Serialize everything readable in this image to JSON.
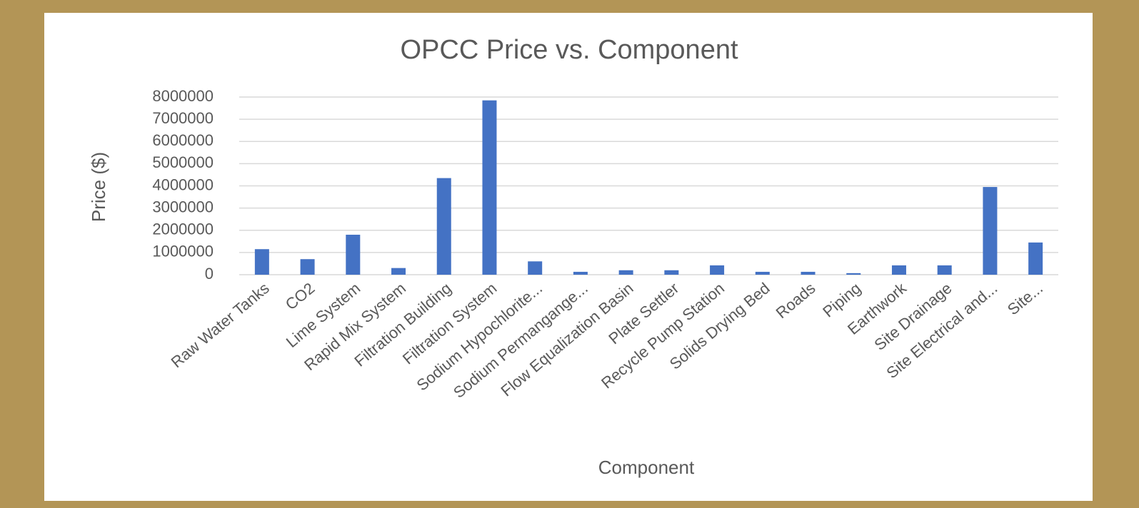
{
  "chart_data": {
    "type": "bar",
    "title": "OPCC Price vs. Component",
    "x_label": "Component",
    "y_label": "Price ($)",
    "categories": [
      "Raw Water Tanks",
      "CO2",
      "Lime System",
      "Rapid Mix System",
      "Filtration Building",
      "Filtration System",
      "Sodium Hypochlorite...",
      "Sodium Permangange...",
      "Flow Equalization Basin",
      "Plate Settler",
      "Recycle Pump Station",
      "Solids Drying Bed",
      "Roads",
      "Piping",
      "Earthwork",
      "Site Drainage",
      "Site Electrical and...",
      "Site..."
    ],
    "values": [
      1150000,
      700000,
      1800000,
      300000,
      4350000,
      7850000,
      600000,
      130000,
      200000,
      200000,
      420000,
      130000,
      130000,
      70000,
      420000,
      420000,
      3950000,
      1450000
    ],
    "color": "#4472c4",
    "ylim": [
      0,
      8000000
    ],
    "yticks": [
      0,
      1000000,
      2000000,
      3000000,
      4000000,
      5000000,
      6000000,
      7000000,
      8000000
    ],
    "grid": true
  }
}
